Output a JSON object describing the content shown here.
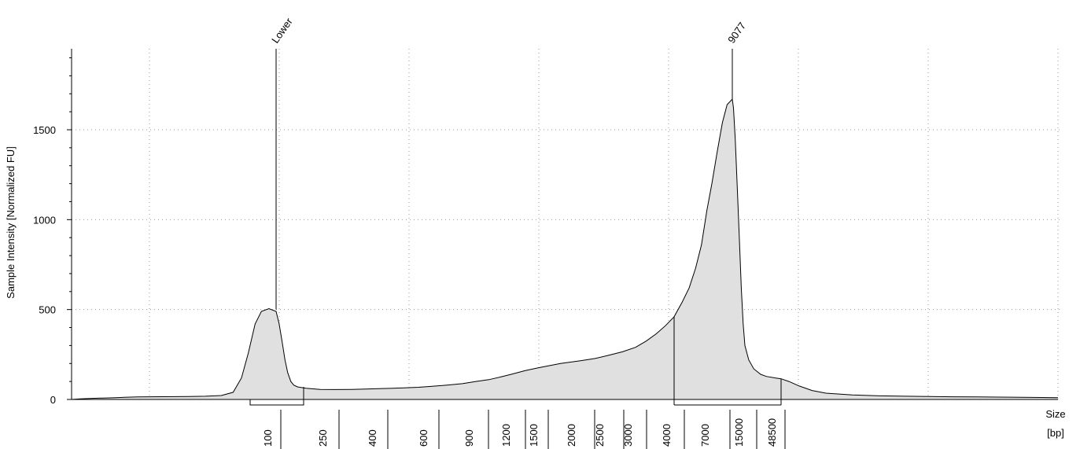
{
  "chart_data": {
    "type": "area",
    "title": "",
    "ylabel": "Sample Intensity [Normalized FU]",
    "xlabel_line1": "Size",
    "xlabel_line2": "[bp]",
    "ylim": [
      0,
      1950
    ],
    "y_ticks": [
      0,
      500,
      1000,
      1500
    ],
    "x_categories": [
      "100",
      "250",
      "400",
      "600",
      "900",
      "1200",
      "1500",
      "2000",
      "2500",
      "3000",
      "4000",
      "7000",
      "15000",
      "48500"
    ],
    "grid": "dotted",
    "fill_color": "#e0e0e0",
    "line_color": "#000000",
    "peak_markers": [
      {
        "label": "Lower",
        "size_bp": 100,
        "height_fu": 500
      },
      {
        "label": "9077",
        "size_bp": 9077,
        "height_fu": 1670
      }
    ],
    "region": {
      "from_bp": 4000,
      "to_bp": 48500
    },
    "series": [
      {
        "points": [
          [
            25,
            0
          ],
          [
            27,
            3
          ],
          [
            30,
            6
          ],
          [
            33,
            8
          ],
          [
            37,
            10
          ],
          [
            40,
            12
          ],
          [
            45,
            14
          ],
          [
            50,
            15
          ],
          [
            60,
            16
          ],
          [
            65,
            18
          ],
          [
            70,
            22
          ],
          [
            74,
            40
          ],
          [
            78,
            120
          ],
          [
            82,
            260
          ],
          [
            86,
            420
          ],
          [
            90,
            490
          ],
          [
            95,
            505
          ],
          [
            100,
            490
          ],
          [
            105,
            420
          ],
          [
            110,
            320
          ],
          [
            115,
            220
          ],
          [
            120,
            150
          ],
          [
            126,
            100
          ],
          [
            132,
            80
          ],
          [
            140,
            70
          ],
          [
            160,
            62
          ],
          [
            200,
            56
          ],
          [
            250,
            55
          ],
          [
            300,
            56
          ],
          [
            350,
            58
          ],
          [
            400,
            60
          ],
          [
            450,
            62
          ],
          [
            500,
            65
          ],
          [
            550,
            68
          ],
          [
            600,
            72
          ],
          [
            650,
            76
          ],
          [
            700,
            80
          ],
          [
            800,
            88
          ],
          [
            900,
            100
          ],
          [
            1000,
            110
          ],
          [
            1100,
            125
          ],
          [
            1200,
            140
          ],
          [
            1350,
            160
          ],
          [
            1500,
            175
          ],
          [
            1750,
            200
          ],
          [
            2000,
            215
          ],
          [
            2250,
            228
          ],
          [
            2500,
            245
          ],
          [
            2750,
            265
          ],
          [
            3000,
            290
          ],
          [
            3250,
            325
          ],
          [
            3500,
            365
          ],
          [
            3750,
            410
          ],
          [
            4000,
            460
          ],
          [
            4500,
            540
          ],
          [
            5000,
            620
          ],
          [
            5500,
            730
          ],
          [
            6000,
            860
          ],
          [
            6500,
            1050
          ],
          [
            7000,
            1200
          ],
          [
            7500,
            1380
          ],
          [
            8000,
            1540
          ],
          [
            8500,
            1640
          ],
          [
            9077,
            1670
          ],
          [
            9500,
            1620
          ],
          [
            10200,
            1450
          ],
          [
            11000,
            1200
          ],
          [
            12000,
            900
          ],
          [
            13000,
            620
          ],
          [
            14000,
            420
          ],
          [
            15000,
            300
          ],
          [
            17000,
            220
          ],
          [
            20000,
            170
          ],
          [
            25000,
            140
          ],
          [
            30000,
            128
          ],
          [
            40000,
            120
          ],
          [
            48500,
            115
          ],
          [
            55000,
            100
          ],
          [
            65000,
            75
          ],
          [
            80000,
            50
          ],
          [
            100000,
            35
          ],
          [
            130000,
            25
          ],
          [
            170000,
            20
          ],
          [
            220000,
            18
          ],
          [
            280000,
            16
          ],
          [
            350000,
            15
          ],
          [
            450000,
            14
          ],
          [
            550000,
            13
          ],
          [
            700000,
            12
          ],
          [
            850000,
            11
          ],
          [
            1000000,
            10
          ]
        ]
      }
    ]
  }
}
